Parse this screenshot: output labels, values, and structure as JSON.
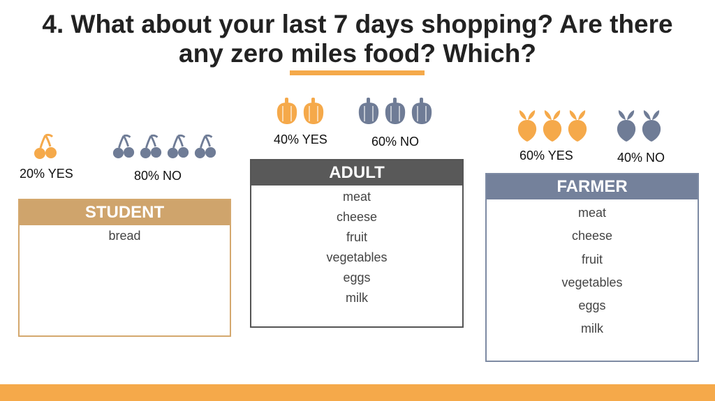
{
  "title": {
    "line1": "4. What about your last 7 days shopping? Are there",
    "line2": "any zero miles food? Which?"
  },
  "colors": {
    "accent": "#f5a94a",
    "yes_icon": "#f5a94a",
    "no_icon": "#6f7c96"
  },
  "student": {
    "header": "STUDENT",
    "icon": "cherry-icon",
    "yes_label": "20% YES",
    "yes_value": 20,
    "no_label": "80% NO",
    "no_value": 80,
    "items": [
      "bread"
    ]
  },
  "adult": {
    "header": "ADULT",
    "icon": "pepper-icon",
    "yes_label": "40% YES",
    "yes_value": 40,
    "no_label": "60% NO",
    "no_value": 60,
    "items": [
      "meat",
      "cheese",
      "fruit",
      "vegetables",
      "eggs",
      "milk"
    ]
  },
  "farmer": {
    "header": "FARMER",
    "icon": "radish-icon",
    "yes_label": "60% YES",
    "yes_value": 60,
    "no_label": "40% NO",
    "no_value": 40,
    "items": [
      "meat",
      "cheese",
      "fruit",
      "vegetables",
      "eggs",
      "milk"
    ]
  }
}
